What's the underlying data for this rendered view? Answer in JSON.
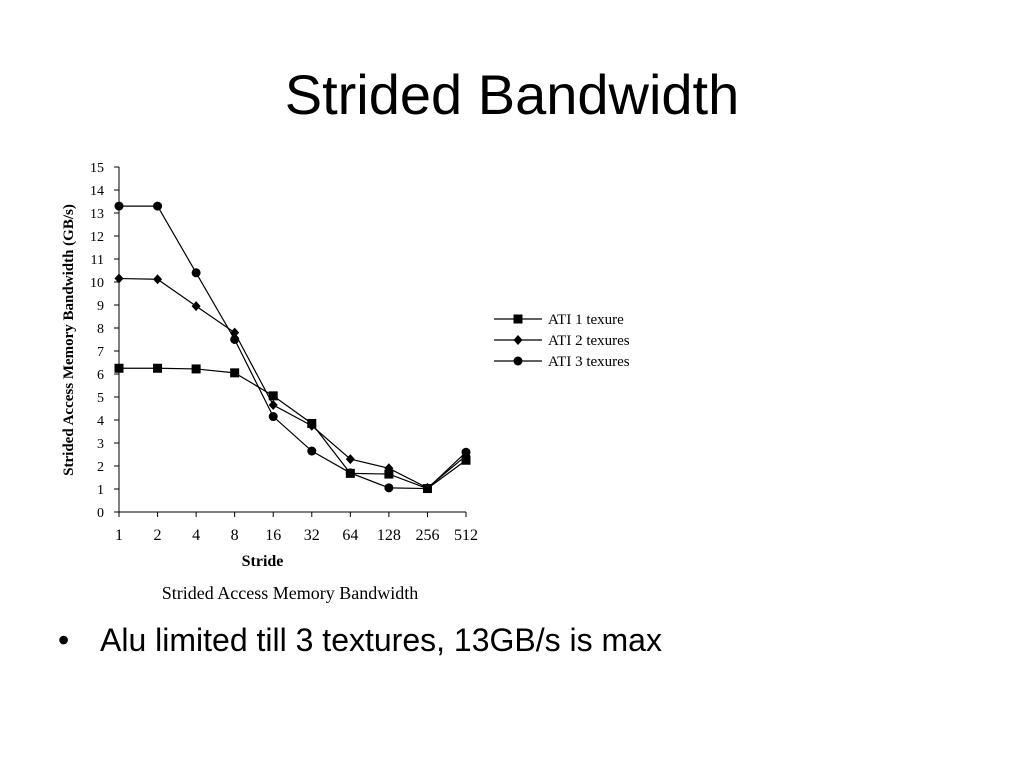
{
  "slide": {
    "title": "Strided Bandwidth",
    "bullets": [
      "Alu limited till 3 textures, 13GB/s is max"
    ]
  },
  "chart_data": {
    "type": "line",
    "title": "",
    "caption": "Strided Access Memory Bandwidth",
    "xlabel": "Stride",
    "ylabel": "Strided Access Memory Bandwidth (GB/s)",
    "categories": [
      "1",
      "2",
      "4",
      "8",
      "16",
      "32",
      "64",
      "128",
      "256",
      "512"
    ],
    "ylim": [
      0,
      15
    ],
    "yticks": [
      0,
      1,
      2,
      3,
      4,
      5,
      6,
      7,
      8,
      9,
      10,
      11,
      12,
      13,
      14,
      15
    ],
    "grid": false,
    "legend_position": "right",
    "series": [
      {
        "name": "ATI 1 texure",
        "marker": "square",
        "values": [
          6.25,
          6.25,
          6.22,
          6.05,
          5.05,
          3.85,
          1.68,
          1.65,
          1.02,
          2.25
        ]
      },
      {
        "name": "ATI 2 texures",
        "marker": "diamond",
        "values": [
          10.15,
          10.12,
          8.95,
          7.8,
          4.65,
          3.75,
          2.3,
          1.9,
          1.05,
          2.45
        ]
      },
      {
        "name": "ATI 3 texures",
        "marker": "circle",
        "values": [
          13.3,
          13.3,
          10.4,
          7.5,
          4.15,
          2.65,
          1.7,
          1.05,
          1.02,
          2.6
        ]
      }
    ]
  }
}
